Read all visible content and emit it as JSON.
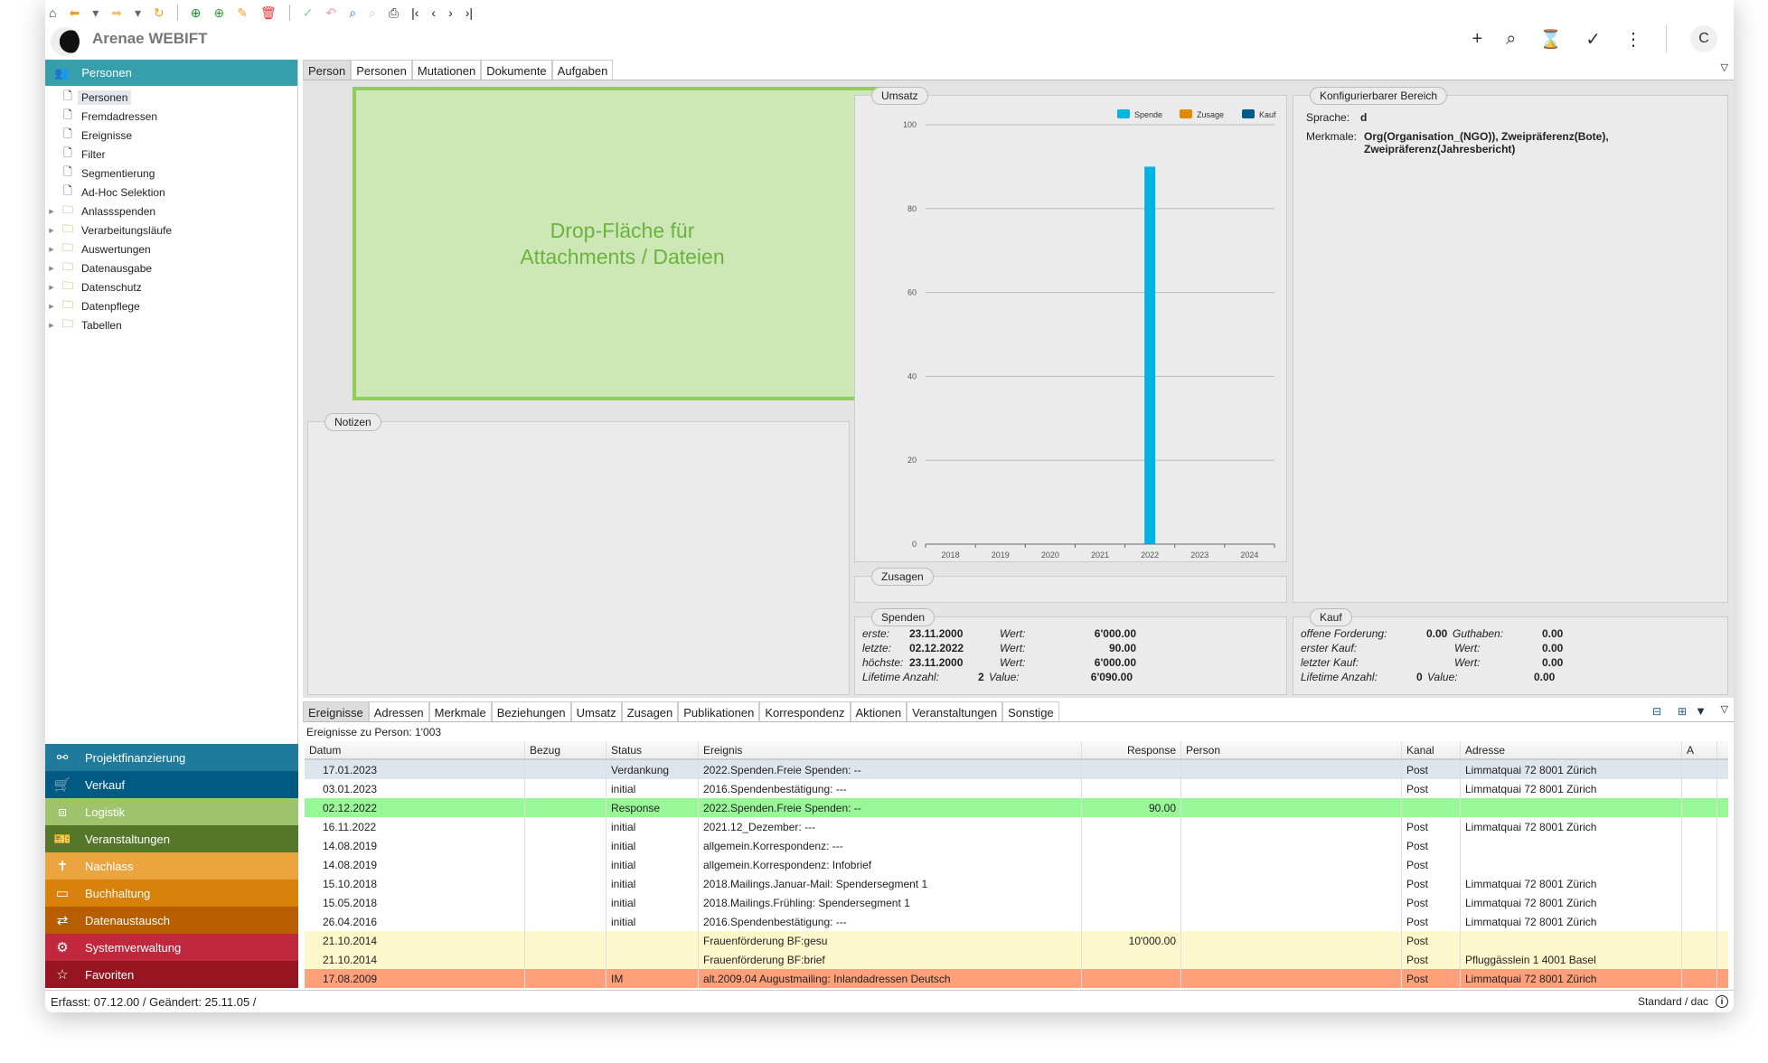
{
  "app": {
    "title": "Arenae WEBIFT",
    "avatar": "C"
  },
  "toolbar": {
    "icons": [
      "home-icon",
      "back-icon",
      "dropdown-icon",
      "forward-icon",
      "dropdown-icon",
      "refresh-icon",
      "add-icon",
      "add-copy-icon",
      "edit-icon",
      "delete-icon",
      "confirm-icon",
      "undo-icon",
      "search-icon",
      "search-disabled-icon",
      "print-icon",
      "first-icon",
      "prev-icon",
      "next-icon",
      "last-icon"
    ]
  },
  "top_right_icons": [
    "plus-icon",
    "search-icon",
    "hourglass-icon",
    "check-circle-icon",
    "more-icon"
  ],
  "sidebar": {
    "header": "Personen",
    "tree": [
      {
        "label": "Personen",
        "type": "doc",
        "selected": true
      },
      {
        "label": "Fremdadressen",
        "type": "doc"
      },
      {
        "label": "Ereignisse",
        "type": "doc"
      },
      {
        "label": "Filter",
        "type": "doc"
      },
      {
        "label": "Segmentierung",
        "type": "doc"
      },
      {
        "label": "Ad-Hoc Selektion",
        "type": "doc"
      },
      {
        "label": "Anlassspenden",
        "type": "folder"
      },
      {
        "label": "Verarbeitungsläufe",
        "type": "folder"
      },
      {
        "label": "Auswertungen",
        "type": "folder"
      },
      {
        "label": "Datenausgabe",
        "type": "folder"
      },
      {
        "label": "Datenschutz",
        "type": "folder"
      },
      {
        "label": "Datenpflege",
        "type": "folder"
      },
      {
        "label": "Tabellen",
        "type": "folder"
      }
    ],
    "nav": [
      {
        "label": "Projektfinanzierung",
        "color": "#1f7a9c",
        "icon": "network-icon"
      },
      {
        "label": "Verkauf",
        "color": "#005a82",
        "icon": "cart-icon"
      },
      {
        "label": "Logistik",
        "color": "#9dc46a",
        "icon": "box-icon"
      },
      {
        "label": "Veranstaltungen",
        "color": "#54772a",
        "icon": "ticket-icon"
      },
      {
        "label": "Nachlass",
        "color": "#eba43e",
        "icon": "gravestone-icon"
      },
      {
        "label": "Buchhaltung",
        "color": "#d8820b",
        "icon": "credit-card-icon"
      },
      {
        "label": "Datenaustausch",
        "color": "#b85e00",
        "icon": "exchange-icon"
      },
      {
        "label": "Systemverwaltung",
        "color": "#c1283d",
        "icon": "gear-icon"
      },
      {
        "label": "Favoriten",
        "color": "#961520",
        "icon": "star-icon"
      }
    ]
  },
  "main_tabs": [
    "Person",
    "Personen",
    "Mutationen",
    "Dokumente",
    "Aufgaben"
  ],
  "drop_zone": {
    "line1": "Drop-Fläche für",
    "line2": "Attachments / Dateien"
  },
  "notizen": {
    "title": "Notizen"
  },
  "umsatz": {
    "title": "Umsatz"
  },
  "chart_data": {
    "type": "bar",
    "categories": [
      "2018",
      "2019",
      "2020",
      "2021",
      "2022",
      "2023",
      "2024"
    ],
    "series": [
      {
        "name": "Spende",
        "color": "#00b4e0",
        "values": [
          0,
          0,
          0,
          0,
          90,
          0,
          0
        ]
      },
      {
        "name": "Zusage",
        "color": "#e08a00",
        "values": [
          0,
          0,
          0,
          0,
          0,
          0,
          0
        ]
      },
      {
        "name": "Kauf",
        "color": "#005a87",
        "values": [
          0,
          0,
          0,
          0,
          0,
          0,
          0
        ]
      }
    ],
    "ylim": [
      0,
      100
    ],
    "yticks": [
      0,
      20,
      40,
      60,
      80,
      100
    ],
    "grid": true,
    "legend": "top-right"
  },
  "konfig": {
    "title": "Konfigurierbarer Bereich",
    "sprache_label": "Sprache:",
    "sprache": "d",
    "merkmale_label": "Merkmale:",
    "merkmale1": "Org(Organisation_(NGO)), Zweipräferenz(Bote),",
    "merkmale2": "Zweipräferenz(Jahresbericht)"
  },
  "zusagen": {
    "title": "Zusagen"
  },
  "spenden": {
    "title": "Spenden",
    "erste_l": "erste:",
    "erste": "23.11.2000",
    "letzte_l": "letzte:",
    "letzte": "02.12.2022",
    "hoechste_l": "höchste:",
    "hoechste": "23.11.2000",
    "wert_l": "Wert:",
    "w1": "6'000.00",
    "w2": "90.00",
    "w3": "6'000.00",
    "lifetime_l": "Lifetime Anzahl:",
    "lifetime": "2",
    "value_l": "Value:",
    "value": "6'090.00"
  },
  "kauf": {
    "title": "Kauf",
    "offen_l": "offene Forderung:",
    "offen": "0.00",
    "guthaben_l": "Guthaben:",
    "guthaben": "0.00",
    "erster_l": "erster Kauf:",
    "letzter_l": "letzter Kauf:",
    "wert_l": "Wert:",
    "w1": "0.00",
    "w2": "0.00",
    "lifetime_l": "Lifetime Anzahl:",
    "lifetime": "0",
    "value_l": "Value:",
    "value": "0.00"
  },
  "bottom_tabs": [
    "Ereignisse",
    "Adressen",
    "Merkmale",
    "Beziehungen",
    "Umsatz",
    "Zusagen",
    "Publikationen",
    "Korrespondenz",
    "Aktionen",
    "Veranstaltungen",
    "Sonstige"
  ],
  "events": {
    "count_text": "Ereignisse zu Person: 1'003",
    "columns": [
      "Datum",
      "Bezug",
      "Status",
      "Ereignis",
      "Response",
      "Person",
      "Kanal",
      "Adresse",
      "A"
    ],
    "rows": [
      [
        "17.01.2023",
        "",
        "Verdankung",
        "2022.Spenden.Freie Spenden: --",
        "",
        "",
        "Post",
        "Limmatquai 72 8001 Zürich",
        ""
      ],
      [
        "03.01.2023",
        "",
        "initial",
        "2016.Spendenbestätigung: ---",
        "",
        "",
        "Post",
        "Limmatquai 72 8001 Zürich",
        ""
      ],
      [
        "02.12.2022",
        "",
        "Response",
        "2022.Spenden.Freie Spenden: --",
        "90.00",
        "",
        "",
        "",
        ""
      ],
      [
        "16.11.2022",
        "",
        "initial",
        "2021.12_Dezember: ---",
        "",
        "",
        "Post",
        "Limmatquai 72 8001 Zürich",
        ""
      ],
      [
        "14.08.2019",
        "",
        "initial",
        "allgemein.Korrespondenz: ---",
        "",
        "",
        "Post",
        "",
        ""
      ],
      [
        "14.08.2019",
        "",
        "initial",
        "allgemein.Korrespondenz: Infobrief",
        "",
        "",
        "Post",
        "",
        ""
      ],
      [
        "15.10.2018",
        "",
        "initial",
        "2018.Mailings.Januar-Mail: Spendersegment 1",
        "",
        "",
        "Post",
        "Limmatquai 72 8001 Zürich",
        ""
      ],
      [
        "15.05.2018",
        "",
        "initial",
        "2018.Mailings.Frühling: Spendersegment 1",
        "",
        "",
        "Post",
        "Limmatquai 72 8001 Zürich",
        ""
      ],
      [
        "26.04.2016",
        "",
        "initial",
        "2016.Spendenbestätigung: ---",
        "",
        "",
        "Post",
        "Limmatquai 72 8001 Zürich",
        ""
      ],
      [
        "21.10.2014",
        "",
        "",
        "Frauenförderung BF:gesu",
        "10'000.00",
        "",
        "Post",
        "",
        ""
      ],
      [
        "21.10.2014",
        "",
        "",
        "Frauenförderung BF:brief",
        "",
        "",
        "Post",
        "Pfluggässlein 1 4001 Basel",
        ""
      ],
      [
        "17.08.2009",
        "",
        "IM",
        "alt.2009.04 Augustmailing: Inlandadressen Deutsch",
        "",
        "",
        "Post",
        "Limmatquai 72 8001 Zürich",
        ""
      ]
    ],
    "row_colors": [
      "#dfe5ec",
      "#ffffff",
      "#98f898",
      "#ffffff",
      "#ffffff",
      "#ffffff",
      "#ffffff",
      "#ffffff",
      "#ffffff",
      "#fdf7cc",
      "#fdf7cc",
      "#ffa07a"
    ]
  },
  "statusbar": {
    "left": "Erfasst: 07.12.00 /  Geändert: 25.11.05 /",
    "right": "Standard / dac"
  }
}
